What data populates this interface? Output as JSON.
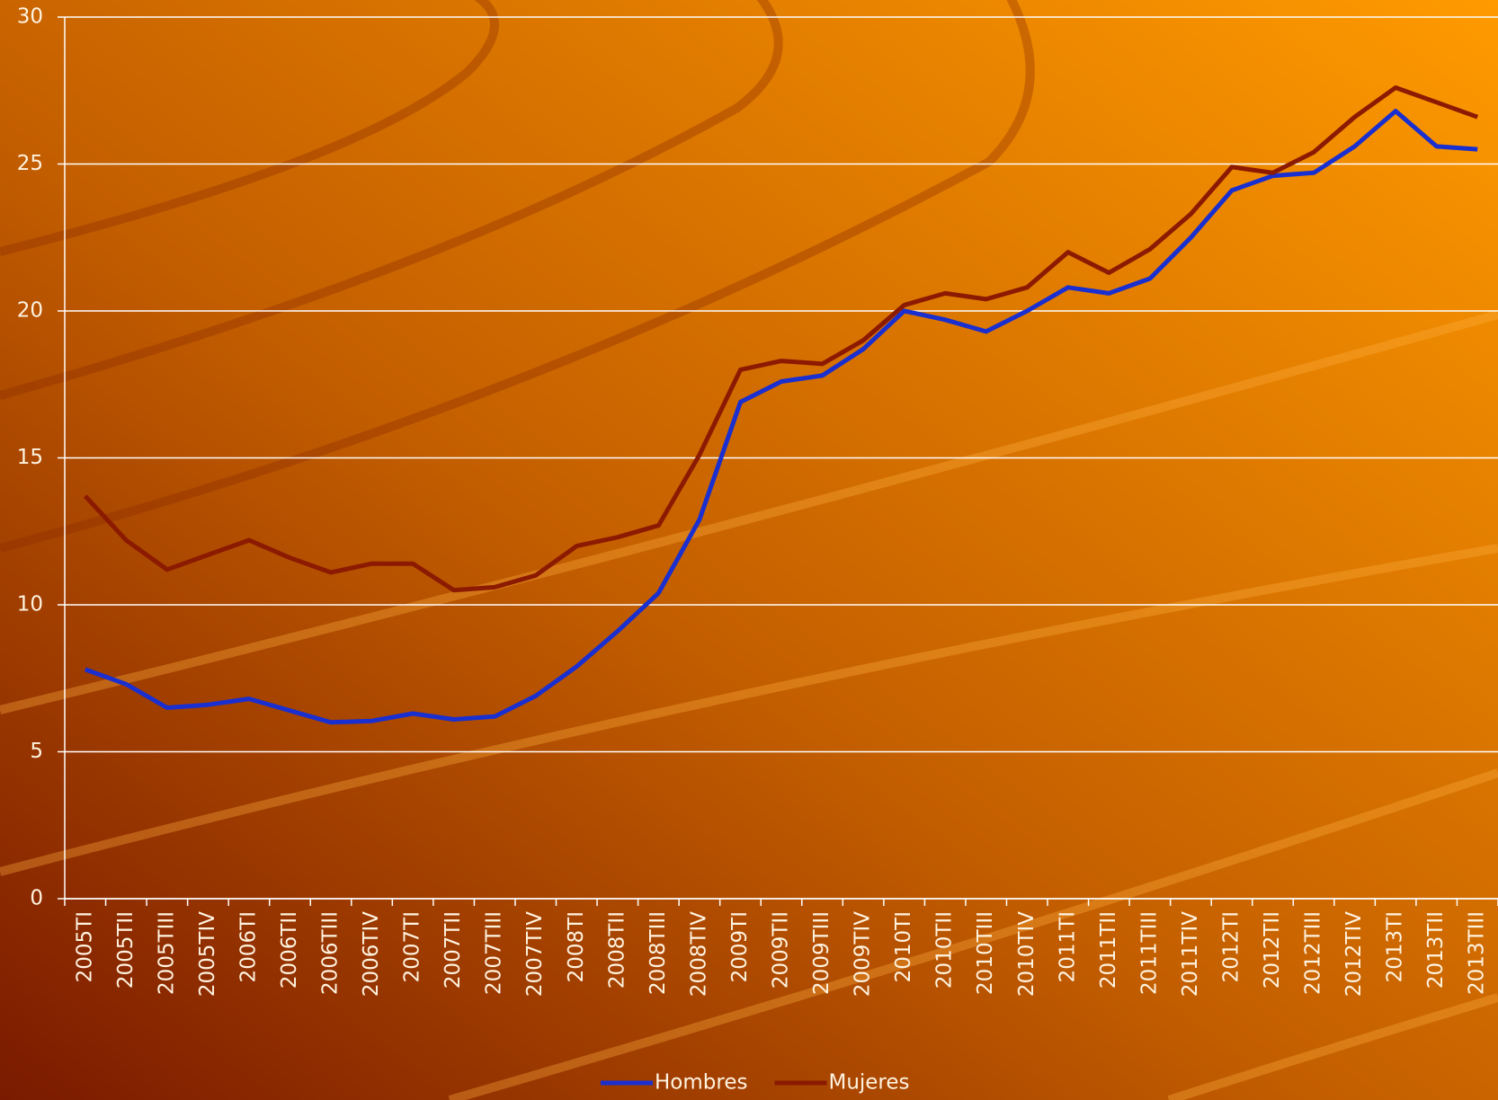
{
  "chart_data": {
    "type": "line",
    "categories": [
      "2005TI",
      "2005TII",
      "2005TIII",
      "2005TIV",
      "2006TI",
      "2006TII",
      "2006TIII",
      "2006TIV",
      "2007TI",
      "2007TII",
      "2007TIII",
      "2007TIV",
      "2008TI",
      "2008TII",
      "2008TIII",
      "2008TIV",
      "2009TI",
      "2009TII",
      "2009TIII",
      "2009TIV",
      "2010TI",
      "2010TII",
      "2010TIII",
      "2010TIV",
      "2011TI",
      "2011TII",
      "2011TIII",
      "2011TIV",
      "2012TI",
      "2012TII",
      "2012TIII",
      "2012TIV",
      "2013TI",
      "2013TII",
      "2013TIII"
    ],
    "series": [
      {
        "name": "Hombres",
        "color": "#1a2fd0",
        "values": [
          7.8,
          7.3,
          6.5,
          6.6,
          6.8,
          6.4,
          6.0,
          6.05,
          6.3,
          6.1,
          6.2,
          6.9,
          7.9,
          9.1,
          10.4,
          12.9,
          16.9,
          17.6,
          17.8,
          18.7,
          20.0,
          19.7,
          19.3,
          20.0,
          20.8,
          20.6,
          21.1,
          22.5,
          24.1,
          24.6,
          24.7,
          25.6,
          26.8,
          25.6,
          25.5
        ]
      },
      {
        "name": "Mujeres",
        "color": "#8b1a00",
        "values": [
          13.7,
          12.2,
          11.2,
          11.7,
          12.2,
          11.6,
          11.1,
          11.4,
          11.4,
          10.5,
          10.6,
          11.0,
          12.0,
          12.3,
          12.7,
          15.1,
          18.0,
          18.3,
          18.2,
          19.0,
          20.2,
          20.6,
          20.4,
          20.8,
          22.0,
          21.3,
          22.1,
          23.3,
          24.9,
          24.7,
          25.4,
          26.6,
          27.6,
          27.1,
          26.6
        ]
      }
    ],
    "ylim": [
      0,
      30
    ],
    "yticks": [
      0,
      5,
      10,
      15,
      20,
      25,
      30
    ],
    "grid": true,
    "legend": "bottom"
  }
}
